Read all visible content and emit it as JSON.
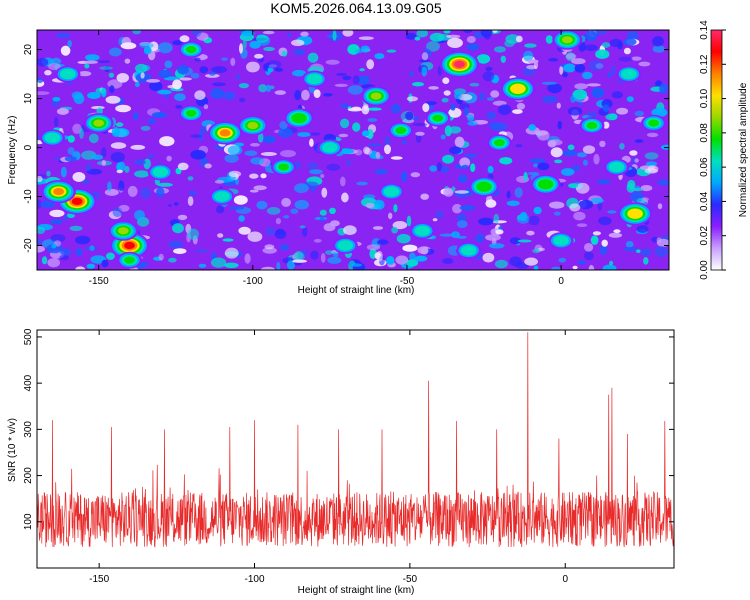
{
  "title": "KOM5.2026.064.13.09.G05",
  "chart_data": [
    {
      "type": "heatmap",
      "xlabel": "Height of straight line (km)",
      "ylabel": "Frequency (Hz)",
      "xlim": [
        -170,
        35
      ],
      "ylim": [
        -25,
        24
      ],
      "xticks": [
        -150,
        -100,
        -50,
        0
      ],
      "xtick_labels": [
        "-150",
        "-100",
        "-50",
        "0"
      ],
      "yticks": [
        -20,
        -10,
        0,
        10,
        20
      ],
      "ytick_labels": [
        "-20",
        "-10",
        "0",
        "10",
        "20"
      ],
      "colorbar": {
        "label": "Normalized spectral amplitude",
        "range": [
          0,
          0.14
        ],
        "ticks": [
          0,
          0.02,
          0.04,
          0.06,
          0.08,
          0.1,
          0.12,
          0.14
        ],
        "tick_labels": [
          "0.00",
          "0.02",
          "0.04",
          "0.06",
          "0.08",
          "0.10",
          "0.12",
          "0.14"
        ],
        "colors": [
          "#ffffff",
          "#c8a0ff",
          "#8a1eff",
          "#2a2aff",
          "#00a8ff",
          "#00e0c0",
          "#00e000",
          "#9ad800",
          "#ffe000",
          "#ff8000",
          "#ff0000",
          "#ff2a6a"
        ]
      },
      "peaks": [
        {
          "x": -33,
          "y": 17,
          "v": 0.135
        },
        {
          "x": -140,
          "y": -20,
          "v": 0.13
        },
        {
          "x": -157,
          "y": -11,
          "v": 0.125
        },
        {
          "x": -163,
          "y": -9,
          "v": 0.115
        },
        {
          "x": -109,
          "y": 3,
          "v": 0.11
        },
        {
          "x": -14,
          "y": 12,
          "v": 0.1
        },
        {
          "x": 24,
          "y": -13.5,
          "v": 0.1
        },
        {
          "x": 2,
          "y": 22,
          "v": 0.095
        },
        {
          "x": -142,
          "y": -17,
          "v": 0.09
        },
        {
          "x": -100,
          "y": 4.5,
          "v": 0.09
        },
        {
          "x": -150,
          "y": 5,
          "v": 0.085
        },
        {
          "x": -60,
          "y": 10.5,
          "v": 0.085
        },
        {
          "x": -25,
          "y": -8,
          "v": 0.08
        },
        {
          "x": -5,
          "y": -7.5,
          "v": 0.08
        },
        {
          "x": -85,
          "y": 6,
          "v": 0.08
        },
        {
          "x": -140,
          "y": -23,
          "v": 0.075
        },
        {
          "x": -120,
          "y": 7,
          "v": 0.075
        },
        {
          "x": 30,
          "y": 5,
          "v": 0.075
        },
        {
          "x": -52,
          "y": 3.5,
          "v": 0.07
        },
        {
          "x": -40,
          "y": 6,
          "v": 0.07
        },
        {
          "x": -20,
          "y": 1,
          "v": 0.07
        },
        {
          "x": -120,
          "y": 20,
          "v": 0.07
        },
        {
          "x": -90,
          "y": -4,
          "v": 0.07
        },
        {
          "x": 10,
          "y": 4.5,
          "v": 0.07
        },
        {
          "x": -70,
          "y": -20,
          "v": 0.065
        },
        {
          "x": -160,
          "y": 15,
          "v": 0.065
        },
        {
          "x": -75,
          "y": 0,
          "v": 0.065
        },
        {
          "x": -110,
          "y": -10,
          "v": 0.065
        },
        {
          "x": 0,
          "y": -19,
          "v": 0.065
        },
        {
          "x": -165,
          "y": 2,
          "v": 0.06
        },
        {
          "x": -130,
          "y": -5,
          "v": 0.06
        },
        {
          "x": -45,
          "y": -17,
          "v": 0.06
        },
        {
          "x": -80,
          "y": 14,
          "v": 0.06
        },
        {
          "x": -30,
          "y": -21,
          "v": 0.06
        },
        {
          "x": 18,
          "y": -4,
          "v": 0.06
        },
        {
          "x": -55,
          "y": -9,
          "v": 0.06
        },
        {
          "x": 22,
          "y": 15,
          "v": 0.06
        }
      ]
    },
    {
      "type": "line",
      "xlabel": "Height of straight line (km)",
      "ylabel": "SNR (10 * v/v)",
      "xlim": [
        -170,
        35
      ],
      "ylim": [
        0,
        515
      ],
      "xticks": [
        -150,
        -100,
        -50,
        0
      ],
      "xtick_labels": [
        "-150",
        "-100",
        "-50",
        "0"
      ],
      "yticks": [
        100,
        200,
        300,
        400,
        500
      ],
      "ytick_labels": [
        "100",
        "200",
        "300",
        "400",
        "500"
      ],
      "series": [
        {
          "name": "SNR",
          "color": "#e82a2a",
          "baseline_mean": 105,
          "baseline_spread": 60
        }
      ],
      "spikes": [
        {
          "x": -12,
          "y": 510
        },
        {
          "x": -44,
          "y": 405
        },
        {
          "x": 15,
          "y": 390
        },
        {
          "x": 14,
          "y": 375
        },
        {
          "x": -165,
          "y": 320
        },
        {
          "x": -100,
          "y": 320
        },
        {
          "x": -86,
          "y": 310
        },
        {
          "x": -35,
          "y": 318
        },
        {
          "x": -146,
          "y": 305
        },
        {
          "x": -129,
          "y": 300
        },
        {
          "x": -108,
          "y": 305
        },
        {
          "x": -73,
          "y": 300
        },
        {
          "x": -59,
          "y": 300
        },
        {
          "x": -22,
          "y": 300
        },
        {
          "x": 32,
          "y": 318
        },
        {
          "x": 20,
          "y": 290
        },
        {
          "x": -2,
          "y": 280
        }
      ]
    }
  ]
}
